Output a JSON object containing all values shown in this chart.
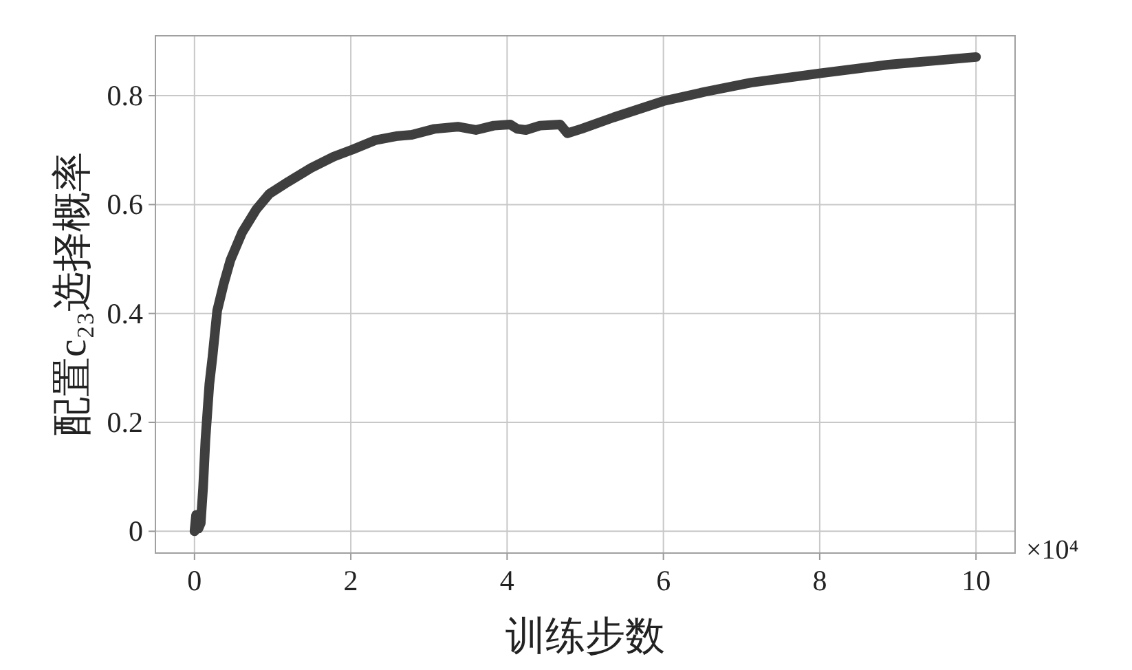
{
  "chart_data": {
    "type": "line",
    "xlabel": "训练步数",
    "ylabel": "配置c₂₃选择概率",
    "annotations": [
      "×10⁴"
    ],
    "xlim": [
      -0.5,
      10.5
    ],
    "ylim": [
      -0.04,
      0.91
    ],
    "xticks": [
      0,
      2,
      4,
      6,
      8,
      10
    ],
    "yticks": [
      0,
      0.2,
      0.4,
      0.6,
      0.8
    ],
    "grid": true,
    "x": [
      0,
      0.02,
      0.05,
      0.08,
      0.11,
      0.14,
      0.19,
      0.23,
      0.29,
      0.375,
      0.46,
      0.61,
      0.79,
      0.96,
      1.2,
      1.49,
      1.78,
      2.02,
      2.31,
      2.6,
      2.78,
      3.07,
      3.37,
      3.6,
      3.83,
      4.04,
      4.13,
      4.24,
      4.42,
      4.68,
      4.77,
      4.95,
      5.36,
      6.0,
      6.53,
      7.12,
      8.0,
      8.88,
      10.0
    ],
    "series": [
      {
        "color": "#3f3f3f",
        "values": [
          0.0,
          0.03,
          0.005,
          0.015,
          0.08,
          0.168,
          0.27,
          0.32,
          0.405,
          0.455,
          0.498,
          0.549,
          0.591,
          0.62,
          0.642,
          0.667,
          0.688,
          0.701,
          0.718,
          0.726,
          0.728,
          0.739,
          0.743,
          0.737,
          0.745,
          0.747,
          0.739,
          0.737,
          0.745,
          0.747,
          0.731,
          0.739,
          0.76,
          0.79,
          0.807,
          0.824,
          0.841,
          0.857,
          0.871
        ]
      }
    ]
  }
}
